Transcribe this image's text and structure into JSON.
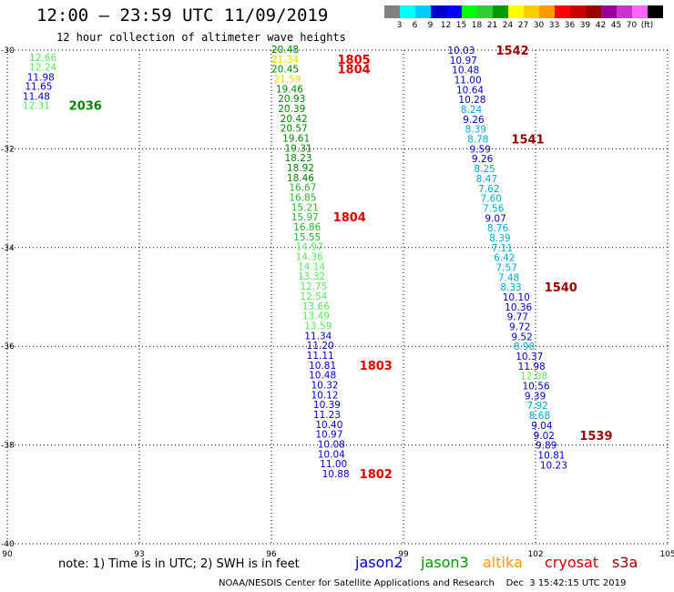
{
  "title": "12:00 — 23:59 UTC 11/09/2019",
  "subtitle": "12 hour collection of altimeter wave heights",
  "legend": {
    "colors": [
      "#808080",
      "#00ffff",
      "#00ccff",
      "#0000cc",
      "#0000ff",
      "#00ff00",
      "#33cc33",
      "#009900",
      "#ffff00",
      "#ffcc00",
      "#ff9900",
      "#ff0000",
      "#cc0000",
      "#990000",
      "#990099",
      "#cc33cc",
      "#ff66ff",
      "#000000"
    ],
    "labels": [
      "3",
      "6",
      "9",
      "12",
      "15",
      "18",
      "21",
      "24",
      "27",
      "30",
      "33",
      "36",
      "39",
      "42",
      "45",
      "70",
      "(ft)"
    ]
  },
  "note": "note:  1) Time is in UTC;  2) SWH is in feet",
  "satellites": [
    {
      "name": "jason2",
      "color": "#0000cc"
    },
    {
      "name": "jason3",
      "color": "#009900"
    },
    {
      "name": "altika",
      "color": "#ff9900"
    },
    {
      "name": "cryosat",
      "color": "#cc0000"
    },
    {
      "name": "s3a",
      "color": "#990000"
    }
  ],
  "footer": "NOAA/NESDIS Center for Satellite Applications and Research    Dec  3 15:42:15 UTC 2019",
  "chart_data": {
    "type": "scatter",
    "xlim": [
      90,
      105
    ],
    "ylim": [
      -40,
      -30
    ],
    "x_ticks": [
      90,
      93,
      96,
      99,
      102,
      105
    ],
    "y_ticks": [
      -30,
      -32,
      -34,
      -36,
      -38,
      -40
    ],
    "grid": true,
    "tracks": [
      {
        "points": [
          {
            "x": 90.5,
            "y": -30.15,
            "v": "12.66",
            "c": "#55ee55"
          },
          {
            "x": 90.5,
            "y": -30.34,
            "v": "12.24",
            "c": "#55ee55"
          },
          {
            "x": 90.45,
            "y": -30.54,
            "v": "11.98",
            "c": "#0000cc"
          },
          {
            "x": 90.4,
            "y": -30.73,
            "v": "11.65",
            "c": "#0000cc"
          },
          {
            "x": 90.35,
            "y": -30.93,
            "v": "11.48",
            "c": "#0000cc"
          },
          {
            "x": 90.35,
            "y": -31.12,
            "v": "12.31",
            "c": "#55ee55"
          }
        ],
        "id": "2036",
        "id_x": 91.4,
        "id_y": -31.12,
        "id_color": "#008800"
      },
      {
        "points": [
          {
            "x": 96.0,
            "y": -29.98,
            "v": "20.48",
            "c": "#008800"
          },
          {
            "x": 96.0,
            "y": -30.18,
            "v": "21.34",
            "c": "#dddd00"
          },
          {
            "x": 96.0,
            "y": -30.38,
            "v": "20.45",
            "c": "#008800"
          },
          {
            "x": 96.05,
            "y": -30.58,
            "v": "21.59",
            "c": "#dddd00"
          },
          {
            "x": 96.1,
            "y": -30.78,
            "v": "19.46",
            "c": "#008800"
          },
          {
            "x": 96.15,
            "y": -30.98,
            "v": "20.93",
            "c": "#008800"
          },
          {
            "x": 96.15,
            "y": -31.18,
            "v": "20.39",
            "c": "#008800"
          },
          {
            "x": 96.2,
            "y": -31.38,
            "v": "20.42",
            "c": "#008800"
          },
          {
            "x": 96.2,
            "y": -31.58,
            "v": "20.57",
            "c": "#008800"
          },
          {
            "x": 96.25,
            "y": -31.78,
            "v": "19.61",
            "c": "#008800"
          },
          {
            "x": 96.3,
            "y": -31.98,
            "v": "19.31",
            "c": "#008800"
          },
          {
            "x": 96.3,
            "y": -32.18,
            "v": "18.23",
            "c": "#008800"
          },
          {
            "x": 96.35,
            "y": -32.38,
            "v": "18.92",
            "c": "#008800"
          },
          {
            "x": 96.35,
            "y": -32.58,
            "v": "18.46",
            "c": "#008800"
          },
          {
            "x": 96.4,
            "y": -32.78,
            "v": "16.67",
            "c": "#22bb22"
          },
          {
            "x": 96.4,
            "y": -32.98,
            "v": "16.85",
            "c": "#22bb22"
          },
          {
            "x": 96.45,
            "y": -33.18,
            "v": "15.21",
            "c": "#22bb22"
          },
          {
            "x": 96.45,
            "y": -33.38,
            "v": "15.97",
            "c": "#22bb22"
          },
          {
            "x": 96.5,
            "y": -33.58,
            "v": "16.86",
            "c": "#22bb22"
          },
          {
            "x": 96.5,
            "y": -33.78,
            "v": "15.55",
            "c": "#22bb22"
          },
          {
            "x": 96.55,
            "y": -33.98,
            "v": "14.97",
            "c": "#55ee55"
          },
          {
            "x": 96.55,
            "y": -34.18,
            "v": "14.36",
            "c": "#55ee55"
          },
          {
            "x": 96.6,
            "y": -34.38,
            "v": "14.14",
            "c": "#55ee55"
          },
          {
            "x": 96.6,
            "y": -34.58,
            "v": "13.32",
            "c": "#55ee55"
          },
          {
            "x": 96.65,
            "y": -34.78,
            "v": "12.75",
            "c": "#55ee55"
          },
          {
            "x": 96.65,
            "y": -34.98,
            "v": "12.54",
            "c": "#55ee55"
          },
          {
            "x": 96.7,
            "y": -35.18,
            "v": "13.66",
            "c": "#55ee55"
          },
          {
            "x": 96.7,
            "y": -35.38,
            "v": "13.49",
            "c": "#55ee55"
          },
          {
            "x": 96.75,
            "y": -35.58,
            "v": "13.59",
            "c": "#55ee55"
          },
          {
            "x": 96.75,
            "y": -35.78,
            "v": "11.34",
            "c": "#0000cc"
          },
          {
            "x": 96.8,
            "y": -35.98,
            "v": "11.20",
            "c": "#0000cc"
          },
          {
            "x": 96.8,
            "y": -36.18,
            "v": "11.11",
            "c": "#0000cc"
          },
          {
            "x": 96.85,
            "y": -36.38,
            "v": "10.81",
            "c": "#0000cc"
          },
          {
            "x": 96.85,
            "y": -36.58,
            "v": "10.48",
            "c": "#0000cc"
          },
          {
            "x": 96.9,
            "y": -36.78,
            "v": "10.32",
            "c": "#0000cc"
          },
          {
            "x": 96.9,
            "y": -36.98,
            "v": "10.12",
            "c": "#0000cc"
          },
          {
            "x": 96.95,
            "y": -37.18,
            "v": "10.39",
            "c": "#0000cc"
          },
          {
            "x": 96.95,
            "y": -37.38,
            "v": "11.23",
            "c": "#0000cc"
          },
          {
            "x": 97.0,
            "y": -37.58,
            "v": "10.40",
            "c": "#0000cc"
          },
          {
            "x": 97.0,
            "y": -37.78,
            "v": "10.97",
            "c": "#0000cc"
          },
          {
            "x": 97.05,
            "y": -37.98,
            "v": "10.08",
            "c": "#0000cc"
          },
          {
            "x": 97.05,
            "y": -38.18,
            "v": "10.04",
            "c": "#0000cc"
          },
          {
            "x": 97.1,
            "y": -38.38,
            "v": "11.00",
            "c": "#0000cc"
          },
          {
            "x": 97.15,
            "y": -38.58,
            "v": "10.88",
            "c": "#0000cc"
          }
        ],
        "ids": [
          {
            "id": "1805",
            "x": 97.5,
            "y": -30.18,
            "c": "#dd0000"
          },
          {
            "id": "1804",
            "x": 97.5,
            "y": -30.38,
            "c": "#dd0000"
          },
          {
            "id": "1804",
            "x": 97.4,
            "y": -33.38,
            "c": "#dd0000"
          },
          {
            "id": "1803",
            "x": 98.0,
            "y": -36.38,
            "c": "#dd0000"
          },
          {
            "id": "1802",
            "x": 98.0,
            "y": -38.58,
            "c": "#dd0000"
          }
        ]
      },
      {
        "points": [
          {
            "x": 100.0,
            "y": -30.0,
            "v": "10.03",
            "c": "#0000cc"
          },
          {
            "x": 100.05,
            "y": -30.2,
            "v": "10.97",
            "c": "#0000cc"
          },
          {
            "x": 100.1,
            "y": -30.4,
            "v": "10.48",
            "c": "#0000cc"
          },
          {
            "x": 100.15,
            "y": -30.6,
            "v": "11.00",
            "c": "#0000cc"
          },
          {
            "x": 100.2,
            "y": -30.8,
            "v": "10.64",
            "c": "#0000cc"
          },
          {
            "x": 100.25,
            "y": -31.0,
            "v": "10.28",
            "c": "#0000cc"
          },
          {
            "x": 100.3,
            "y": -31.2,
            "v": "8.24",
            "c": "#00aadd"
          },
          {
            "x": 100.35,
            "y": -31.4,
            "v": "9.26",
            "c": "#0000cc"
          },
          {
            "x": 100.4,
            "y": -31.6,
            "v": "8.39",
            "c": "#00aadd"
          },
          {
            "x": 100.45,
            "y": -31.8,
            "v": "8.78",
            "c": "#00aadd"
          },
          {
            "x": 100.5,
            "y": -32.0,
            "v": "9.59",
            "c": "#0000cc"
          },
          {
            "x": 100.55,
            "y": -32.2,
            "v": "9.26",
            "c": "#0000cc"
          },
          {
            "x": 100.6,
            "y": -32.4,
            "v": "8.25",
            "c": "#00aadd"
          },
          {
            "x": 100.65,
            "y": -32.6,
            "v": "8.47",
            "c": "#00aadd"
          },
          {
            "x": 100.7,
            "y": -32.8,
            "v": "7.62",
            "c": "#00aadd"
          },
          {
            "x": 100.75,
            "y": -33.0,
            "v": "7.60",
            "c": "#00aadd"
          },
          {
            "x": 100.8,
            "y": -33.2,
            "v": "7.56",
            "c": "#00aadd"
          },
          {
            "x": 100.85,
            "y": -33.4,
            "v": "9.07",
            "c": "#0000cc"
          },
          {
            "x": 100.9,
            "y": -33.6,
            "v": "8.76",
            "c": "#00aadd"
          },
          {
            "x": 100.95,
            "y": -33.8,
            "v": "8.39",
            "c": "#00aadd"
          },
          {
            "x": 101.0,
            "y": -34.0,
            "v": "7.11",
            "c": "#00aadd"
          },
          {
            "x": 101.05,
            "y": -34.2,
            "v": "6.42",
            "c": "#00aadd"
          },
          {
            "x": 101.1,
            "y": -34.4,
            "v": "7.57",
            "c": "#00aadd"
          },
          {
            "x": 101.15,
            "y": -34.6,
            "v": "7.48",
            "c": "#00aadd"
          },
          {
            "x": 101.2,
            "y": -34.8,
            "v": "8.33",
            "c": "#00aadd"
          },
          {
            "x": 101.25,
            "y": -35.0,
            "v": "10.10",
            "c": "#0000cc"
          },
          {
            "x": 101.3,
            "y": -35.2,
            "v": "10.36",
            "c": "#0000cc"
          },
          {
            "x": 101.35,
            "y": -35.4,
            "v": "9.77",
            "c": "#0000cc"
          },
          {
            "x": 101.4,
            "y": -35.6,
            "v": "9.72",
            "c": "#0000cc"
          },
          {
            "x": 101.45,
            "y": -35.8,
            "v": "9.52",
            "c": "#0000cc"
          },
          {
            "x": 101.5,
            "y": -36.0,
            "v": "8.98",
            "c": "#00aadd"
          },
          {
            "x": 101.55,
            "y": -36.2,
            "v": "10.37",
            "c": "#0000cc"
          },
          {
            "x": 101.6,
            "y": -36.4,
            "v": "11.98",
            "c": "#0000cc"
          },
          {
            "x": 101.65,
            "y": -36.6,
            "v": "12.08",
            "c": "#55ee55"
          },
          {
            "x": 101.7,
            "y": -36.8,
            "v": "10.56",
            "c": "#0000cc"
          },
          {
            "x": 101.75,
            "y": -37.0,
            "v": "9.39",
            "c": "#0000cc"
          },
          {
            "x": 101.8,
            "y": -37.2,
            "v": "7.92",
            "c": "#00aadd"
          },
          {
            "x": 101.85,
            "y": -37.4,
            "v": "8.68",
            "c": "#00aadd"
          },
          {
            "x": 101.9,
            "y": -37.6,
            "v": "9.04",
            "c": "#0000cc"
          },
          {
            "x": 101.95,
            "y": -37.8,
            "v": "9.02",
            "c": "#0000cc"
          },
          {
            "x": 102.0,
            "y": -38.0,
            "v": "9.89",
            "c": "#0000cc"
          },
          {
            "x": 102.05,
            "y": -38.2,
            "v": "10.81",
            "c": "#0000cc"
          },
          {
            "x": 102.1,
            "y": -38.4,
            "v": "10.23",
            "c": "#0000cc"
          }
        ],
        "ids": [
          {
            "id": "1542",
            "x": 101.1,
            "y": -30.0,
            "c": "#990000"
          },
          {
            "id": "1541",
            "x": 101.45,
            "y": -31.8,
            "c": "#990000"
          },
          {
            "id": "1540",
            "x": 102.2,
            "y": -34.8,
            "c": "#990000"
          },
          {
            "id": "1539",
            "x": 103.0,
            "y": -37.8,
            "c": "#990000"
          }
        ]
      }
    ]
  }
}
